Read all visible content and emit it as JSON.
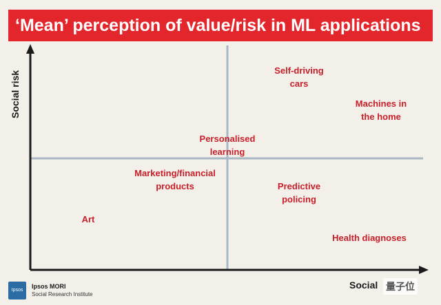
{
  "title": "‘Mean’ perception of value/risk in ML applications",
  "y_axis_label": "Social risk",
  "x_axis_label": "Social ",
  "items": [
    {
      "id": "self-driving-cars",
      "label": "Self-driving\ncars"
    },
    {
      "id": "machines-in-home",
      "label": "Machines in\nthe home"
    },
    {
      "id": "personalised-learning",
      "label": "Personalised\nlearning"
    },
    {
      "id": "marketing-financial",
      "label": "Marketing/financial\nproducts"
    },
    {
      "id": "predictive-policing",
      "label": "Predictive\npolicing"
    },
    {
      "id": "art",
      "label": "Art"
    },
    {
      "id": "health-diagnoses",
      "label": "Health diagnoses"
    }
  ],
  "footer": {
    "logo_text": "Ipsos",
    "org_name": "Ipsos MORI",
    "org_sub": "Social Research Institute"
  },
  "watermark": "量子位",
  "colors": {
    "title_bg": "#e2262c",
    "item_text": "#c6202a",
    "background": "#f3efe9"
  }
}
